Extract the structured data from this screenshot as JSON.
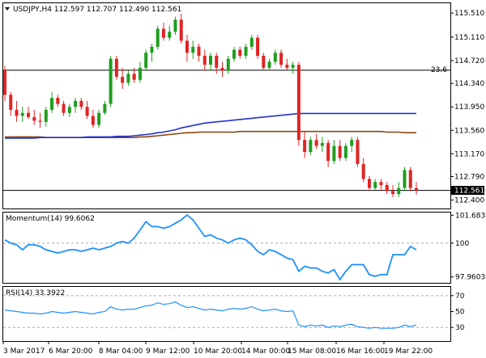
{
  "chart_data": [
    {
      "type": "candlestick",
      "title": "USDJPY,H4  112.597 112.707 112.490 112.561",
      "price_tags": [
        "23.6",
        "112.561"
      ],
      "y_ticks": [
        "115.510",
        "115.110",
        "114.720",
        "114.340",
        "113.950",
        "113.560",
        "113.170",
        "112.790",
        "112.400"
      ],
      "ylim": [
        112.3,
        115.62
      ],
      "x_labels": [
        "3 Mar 2017",
        "6 Mar 20:00",
        "8 Mar 04:00",
        "9 Mar 12:00",
        "10 Mar 20:00",
        "14 Mar 00:00",
        "15 Mar 08:00",
        "16 Mar 16:00",
        "19 Mar 22:00"
      ],
      "last_price": 112.561,
      "fib_level_price": 114.56,
      "colors": {
        "up": "#1f9e1f",
        "down": "#e02424",
        "sma_fast": "#2233cc",
        "sma_slow": "#8b4513",
        "level": "#000000"
      },
      "candles": [
        {
          "o": 114.56,
          "h": 114.63,
          "l": 114.05,
          "c": 114.15
        },
        {
          "o": 114.15,
          "h": 114.2,
          "l": 113.8,
          "c": 113.9
        },
        {
          "o": 113.9,
          "h": 114.05,
          "l": 113.7,
          "c": 113.8
        },
        {
          "o": 113.8,
          "h": 113.95,
          "l": 113.7,
          "c": 113.85
        },
        {
          "o": 113.85,
          "h": 113.95,
          "l": 113.75,
          "c": 113.78
        },
        {
          "o": 113.78,
          "h": 113.9,
          "l": 113.65,
          "c": 113.72
        },
        {
          "o": 113.72,
          "h": 113.85,
          "l": 113.6,
          "c": 113.7
        },
        {
          "o": 113.7,
          "h": 113.95,
          "l": 113.62,
          "c": 113.9
        },
        {
          "o": 113.9,
          "h": 114.2,
          "l": 113.85,
          "c": 114.1
        },
        {
          "o": 114.1,
          "h": 114.15,
          "l": 113.95,
          "c": 114.0
        },
        {
          "o": 114.0,
          "h": 114.05,
          "l": 113.8,
          "c": 113.85
        },
        {
          "o": 113.85,
          "h": 114.0,
          "l": 113.78,
          "c": 113.95
        },
        {
          "o": 113.95,
          "h": 114.1,
          "l": 113.85,
          "c": 114.05
        },
        {
          "o": 114.05,
          "h": 114.1,
          "l": 113.9,
          "c": 113.95
        },
        {
          "o": 113.95,
          "h": 114.05,
          "l": 113.75,
          "c": 113.8
        },
        {
          "o": 113.8,
          "h": 113.9,
          "l": 113.6,
          "c": 113.65
        },
        {
          "o": 113.65,
          "h": 113.9,
          "l": 113.6,
          "c": 113.85
        },
        {
          "o": 113.85,
          "h": 114.05,
          "l": 113.82,
          "c": 114.0
        },
        {
          "o": 114.0,
          "h": 114.8,
          "l": 113.95,
          "c": 114.75
        },
        {
          "o": 114.75,
          "h": 114.8,
          "l": 114.4,
          "c": 114.45
        },
        {
          "o": 114.45,
          "h": 114.6,
          "l": 114.25,
          "c": 114.35
        },
        {
          "o": 114.35,
          "h": 114.55,
          "l": 114.3,
          "c": 114.5
        },
        {
          "o": 114.5,
          "h": 114.6,
          "l": 114.35,
          "c": 114.4
        },
        {
          "o": 114.4,
          "h": 114.7,
          "l": 114.35,
          "c": 114.6
        },
        {
          "o": 114.6,
          "h": 114.9,
          "l": 114.55,
          "c": 114.85
        },
        {
          "o": 114.85,
          "h": 115.0,
          "l": 114.7,
          "c": 114.95
        },
        {
          "o": 114.95,
          "h": 115.3,
          "l": 114.9,
          "c": 115.25
        },
        {
          "o": 115.25,
          "h": 115.35,
          "l": 115.05,
          "c": 115.1
        },
        {
          "o": 115.1,
          "h": 115.3,
          "l": 115.05,
          "c": 115.2
        },
        {
          "o": 115.2,
          "h": 115.45,
          "l": 115.15,
          "c": 115.4
        },
        {
          "o": 115.4,
          "h": 115.5,
          "l": 115.0,
          "c": 115.05
        },
        {
          "o": 115.05,
          "h": 115.15,
          "l": 114.7,
          "c": 114.85
        },
        {
          "o": 114.85,
          "h": 115.05,
          "l": 114.75,
          "c": 114.95
        },
        {
          "o": 114.95,
          "h": 115.0,
          "l": 114.7,
          "c": 114.8
        },
        {
          "o": 114.8,
          "h": 114.9,
          "l": 114.55,
          "c": 114.65
        },
        {
          "o": 114.65,
          "h": 114.85,
          "l": 114.55,
          "c": 114.8
        },
        {
          "o": 114.8,
          "h": 114.85,
          "l": 114.5,
          "c": 114.6
        },
        {
          "o": 114.6,
          "h": 114.7,
          "l": 114.45,
          "c": 114.55
        },
        {
          "o": 114.55,
          "h": 114.8,
          "l": 114.5,
          "c": 114.75
        },
        {
          "o": 114.75,
          "h": 114.95,
          "l": 114.7,
          "c": 114.9
        },
        {
          "o": 114.9,
          "h": 114.95,
          "l": 114.75,
          "c": 114.8
        },
        {
          "o": 114.8,
          "h": 115.0,
          "l": 114.75,
          "c": 114.95
        },
        {
          "o": 114.95,
          "h": 115.15,
          "l": 114.9,
          "c": 115.1
        },
        {
          "o": 115.1,
          "h": 115.15,
          "l": 114.75,
          "c": 114.8
        },
        {
          "o": 114.8,
          "h": 114.85,
          "l": 114.55,
          "c": 114.6
        },
        {
          "o": 114.6,
          "h": 114.75,
          "l": 114.55,
          "c": 114.7
        },
        {
          "o": 114.7,
          "h": 114.9,
          "l": 114.65,
          "c": 114.85
        },
        {
          "o": 114.85,
          "h": 114.9,
          "l": 114.6,
          "c": 114.65
        },
        {
          "o": 114.65,
          "h": 114.75,
          "l": 114.55,
          "c": 114.6
        },
        {
          "o": 114.6,
          "h": 114.7,
          "l": 114.5,
          "c": 114.65
        },
        {
          "o": 114.65,
          "h": 114.7,
          "l": 113.3,
          "c": 113.4
        },
        {
          "o": 113.4,
          "h": 113.55,
          "l": 113.1,
          "c": 113.2
        },
        {
          "o": 113.2,
          "h": 113.45,
          "l": 113.15,
          "c": 113.4
        },
        {
          "o": 113.4,
          "h": 113.5,
          "l": 113.25,
          "c": 113.3
        },
        {
          "o": 113.3,
          "h": 113.45,
          "l": 113.2,
          "c": 113.35
        },
        {
          "o": 113.35,
          "h": 113.4,
          "l": 112.95,
          "c": 113.05
        },
        {
          "o": 113.05,
          "h": 113.4,
          "l": 113.0,
          "c": 113.3
        },
        {
          "o": 113.3,
          "h": 113.4,
          "l": 113.05,
          "c": 113.1
        },
        {
          "o": 113.1,
          "h": 113.35,
          "l": 113.05,
          "c": 113.3
        },
        {
          "o": 113.3,
          "h": 113.45,
          "l": 113.2,
          "c": 113.4
        },
        {
          "o": 113.4,
          "h": 113.45,
          "l": 112.95,
          "c": 113.0
        },
        {
          "o": 113.0,
          "h": 113.1,
          "l": 112.7,
          "c": 112.75
        },
        {
          "o": 112.75,
          "h": 112.8,
          "l": 112.55,
          "c": 112.6
        },
        {
          "o": 112.6,
          "h": 112.75,
          "l": 112.55,
          "c": 112.7
        },
        {
          "o": 112.7,
          "h": 112.75,
          "l": 112.55,
          "c": 112.65
        },
        {
          "o": 112.65,
          "h": 112.7,
          "l": 112.5,
          "c": 112.55
        },
        {
          "o": 112.55,
          "h": 112.65,
          "l": 112.45,
          "c": 112.5
        },
        {
          "o": 112.5,
          "h": 112.7,
          "l": 112.45,
          "c": 112.6
        },
        {
          "o": 112.6,
          "h": 112.95,
          "l": 112.55,
          "c": 112.9
        },
        {
          "o": 112.9,
          "h": 112.95,
          "l": 112.55,
          "c": 112.6
        },
        {
          "o": 112.6,
          "h": 112.7,
          "l": 112.49,
          "c": 112.56
        }
      ],
      "sma_fast": [
        113.43,
        113.43,
        113.43,
        113.43,
        113.43,
        113.43,
        113.44,
        113.44,
        113.44,
        113.44,
        113.44,
        113.44,
        113.44,
        113.44,
        113.45,
        113.45,
        113.45,
        113.45,
        113.45,
        113.46,
        113.46,
        113.46,
        113.47,
        113.48,
        113.49,
        113.5,
        113.52,
        113.53,
        113.55,
        113.57,
        113.6,
        113.62,
        113.64,
        113.66,
        113.68,
        113.69,
        113.7,
        113.71,
        113.72,
        113.73,
        113.74,
        113.75,
        113.76,
        113.77,
        113.78,
        113.79,
        113.8,
        113.81,
        113.82,
        113.83,
        113.84,
        113.84,
        113.84,
        113.84,
        113.84,
        113.84,
        113.84,
        113.84,
        113.84,
        113.84,
        113.84,
        113.84,
        113.84,
        113.84,
        113.84,
        113.84,
        113.84,
        113.84,
        113.84,
        113.84,
        113.84
      ],
      "sma_slow": [
        113.45,
        113.45,
        113.45,
        113.45,
        113.45,
        113.45,
        113.45,
        113.44,
        113.44,
        113.44,
        113.44,
        113.44,
        113.44,
        113.44,
        113.44,
        113.44,
        113.44,
        113.44,
        113.44,
        113.44,
        113.44,
        113.44,
        113.44,
        113.45,
        113.45,
        113.46,
        113.47,
        113.48,
        113.49,
        113.5,
        113.51,
        113.52,
        113.52,
        113.53,
        113.53,
        113.53,
        113.53,
        113.53,
        113.53,
        113.53,
        113.54,
        113.54,
        113.54,
        113.54,
        113.54,
        113.54,
        113.54,
        113.54,
        113.54,
        113.54,
        113.54,
        113.54,
        113.54,
        113.54,
        113.54,
        113.54,
        113.54,
        113.54,
        113.54,
        113.54,
        113.54,
        113.54,
        113.54,
        113.54,
        113.54,
        113.53,
        113.53,
        113.53,
        113.52,
        113.52,
        113.52
      ]
    },
    {
      "type": "line",
      "title": "Momentum(14) 99.6062",
      "y_ticks": [
        "101.6831",
        "100",
        "97.9603"
      ],
      "ylim": [
        97.7,
        101.7
      ],
      "reference_level": 100,
      "color": "#1e90ff",
      "values": [
        100.2,
        100.0,
        99.9,
        99.6,
        99.9,
        99.9,
        99.8,
        99.6,
        99.5,
        99.4,
        99.5,
        99.6,
        99.6,
        99.5,
        99.6,
        99.7,
        99.6,
        99.7,
        99.8,
        100.0,
        100.1,
        100.0,
        100.3,
        100.8,
        101.3,
        101.0,
        101.0,
        100.9,
        101.0,
        101.2,
        101.4,
        101.7,
        101.4,
        100.9,
        100.4,
        100.5,
        100.3,
        100.2,
        100.0,
        100.2,
        100.3,
        100.2,
        99.9,
        99.5,
        99.3,
        99.6,
        99.5,
        99.3,
        99.1,
        99.0,
        98.3,
        98.6,
        98.5,
        98.5,
        98.3,
        98.2,
        98.4,
        97.8,
        98.3,
        98.7,
        98.7,
        98.7,
        98.1,
        98.0,
        98.1,
        98.1,
        99.3,
        99.3,
        99.3,
        99.8,
        99.6
      ]
    },
    {
      "type": "line",
      "title": "RSI(14) 33.3922",
      "y_ticks": [
        "70",
        "50",
        "30"
      ],
      "ylim": [
        15,
        80
      ],
      "reference_levels": [
        70,
        30
      ],
      "color": "#1e90ff",
      "values": [
        52,
        51,
        50,
        49,
        48,
        48,
        47,
        48,
        50,
        49,
        48,
        49,
        50,
        49,
        48,
        47,
        49,
        50,
        56,
        53,
        52,
        53,
        53,
        55,
        57,
        58,
        61,
        59,
        60,
        62,
        58,
        55,
        56,
        54,
        52,
        53,
        52,
        51,
        53,
        54,
        53,
        54,
        56,
        53,
        51,
        52,
        53,
        51,
        50,
        51,
        33,
        31,
        33,
        32,
        33,
        30,
        32,
        31,
        33,
        34,
        31,
        30,
        29,
        30,
        29,
        29,
        29,
        30,
        33,
        31,
        33.4
      ]
    }
  ]
}
